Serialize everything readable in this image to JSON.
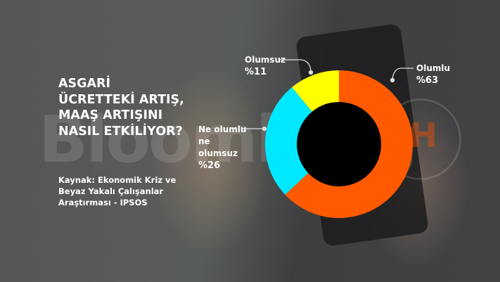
{
  "title": "ASGARİ ÜCRETTEKİ ARTIŞ, MAAŞ ARTIŞINI NASIL ETKİLİYOR?",
  "source": "Kaynak: Ekonomik Kriz ve Beyaz Yakalı Çalışanlar Araştırması - IPSOS",
  "watermark": "Bloomberg HT",
  "chart_data": {
    "type": "pie",
    "donut": true,
    "start": "top, clockwise",
    "slices": [
      {
        "name": "Olumlu",
        "label": "%63",
        "value": 63,
        "color": "#FF5A00"
      },
      {
        "name": "Ne olumlu ne olumsuz",
        "label": "%26",
        "value": 26,
        "color": "#00E8FF"
      },
      {
        "name": "Olumsuz",
        "label": "%11",
        "value": 11,
        "color": "#FFFF00"
      }
    ]
  }
}
